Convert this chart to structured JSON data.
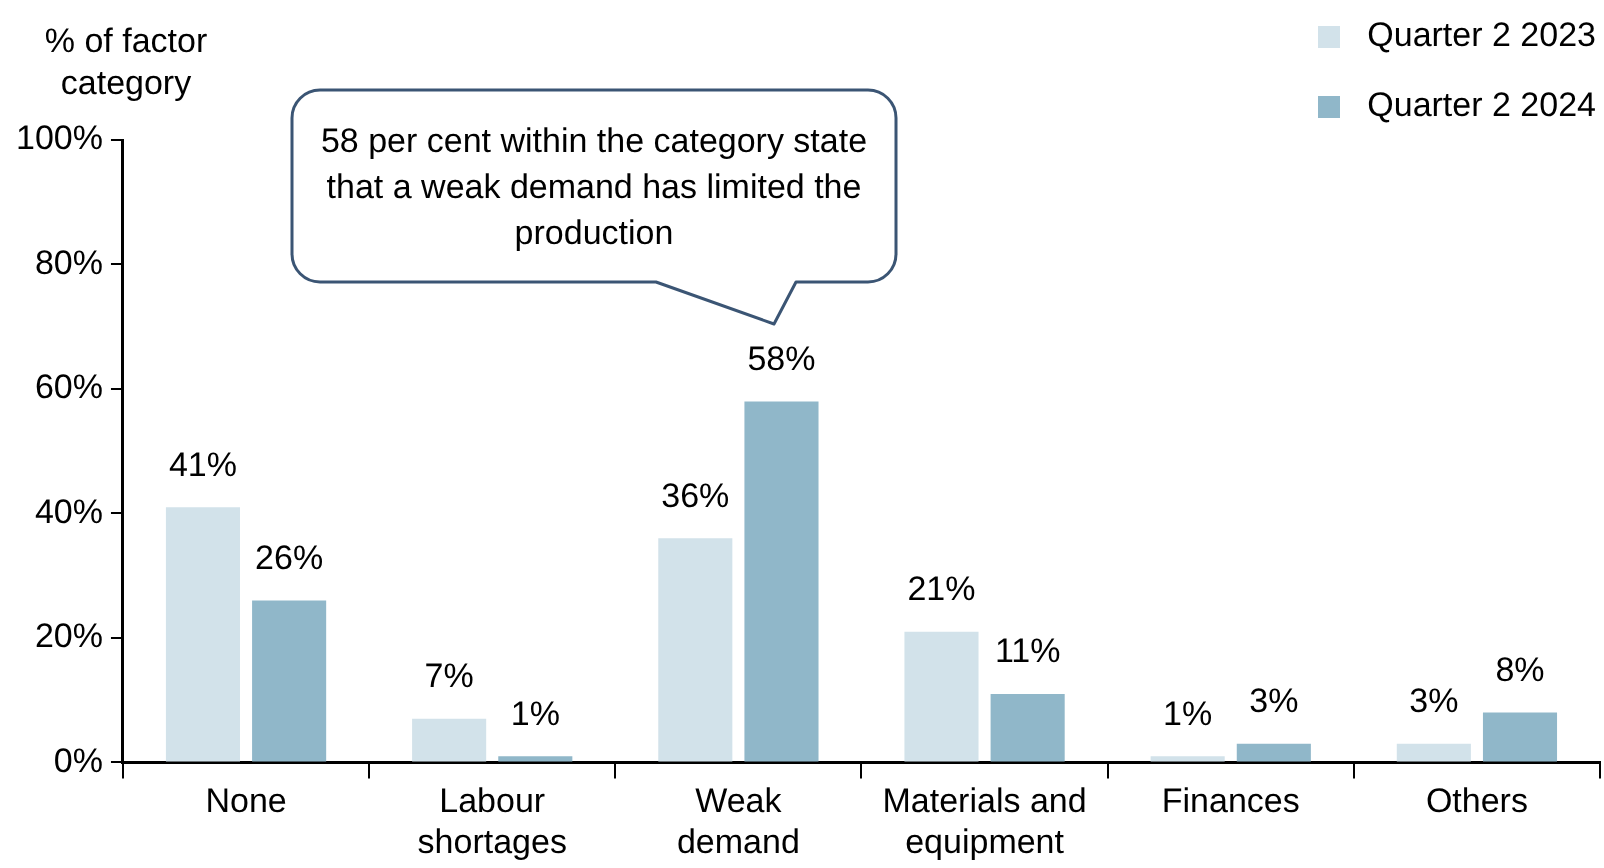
{
  "chart_data": {
    "type": "bar",
    "ylabel": "% of factor category",
    "categories": [
      "None",
      "Labour shortages",
      "Weak demand",
      "Materials and equipment",
      "Finances",
      "Others"
    ],
    "series": [
      {
        "name": "Quarter 2 2023",
        "color": "#d2e2ea",
        "values": [
          41,
          7,
          36,
          21,
          1,
          3
        ],
        "value_labels": [
          "41%",
          "7%",
          "36%",
          "21%",
          "1%",
          "3%"
        ]
      },
      {
        "name": "Quarter 2 2024",
        "color": "#90b7c9",
        "values": [
          26,
          1,
          58,
          11,
          3,
          8
        ],
        "value_labels": [
          "26%",
          "1%",
          "58%",
          "11%",
          "3%",
          "8%"
        ]
      }
    ],
    "ylim": [
      0,
      100
    ],
    "yticks": [
      {
        "value": 0,
        "label": "0%"
      },
      {
        "value": 20,
        "label": "20%"
      },
      {
        "value": 40,
        "label": "40%"
      },
      {
        "value": 60,
        "label": "60%"
      },
      {
        "value": 80,
        "label": "80%"
      },
      {
        "value": 100,
        "label": "100%"
      }
    ],
    "grid": false,
    "legend": "top right",
    "annotations": [
      "58 per cent within the category state that a weak demand has limited the production"
    ]
  }
}
